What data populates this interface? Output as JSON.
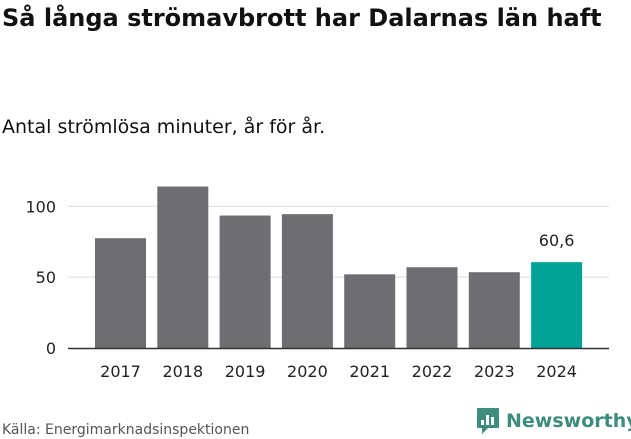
{
  "title": "Så långa strömavbrott har Dalarnas län haft",
  "subtitle": "Antal strömlösa minuter, år för år.",
  "source": "Källa: Energimarknadsinspektionen",
  "brand": {
    "name": "Newsworthy",
    "icon": "newsworthy-logo-icon",
    "color": "#3d8c7d"
  },
  "colors": {
    "bar": "#6e6d71",
    "highlight": "#00a197",
    "grid": "#dcdcdc",
    "axis": "#333333",
    "text": "#222222"
  },
  "chart_data": {
    "type": "bar",
    "categories": [
      "2017",
      "2018",
      "2019",
      "2020",
      "2021",
      "2022",
      "2023",
      "2024"
    ],
    "values": [
      77.5,
      114,
      93.5,
      94.5,
      52,
      57,
      53.5,
      60.6
    ],
    "highlight_index": 7,
    "highlight_label": "60,6",
    "yticks": [
      0,
      50,
      100
    ],
    "ylim": [
      0,
      120
    ],
    "title": "Så långa strömavbrott har Dalarnas län haft",
    "xlabel": "",
    "ylabel": "Antal strömlösa minuter"
  }
}
